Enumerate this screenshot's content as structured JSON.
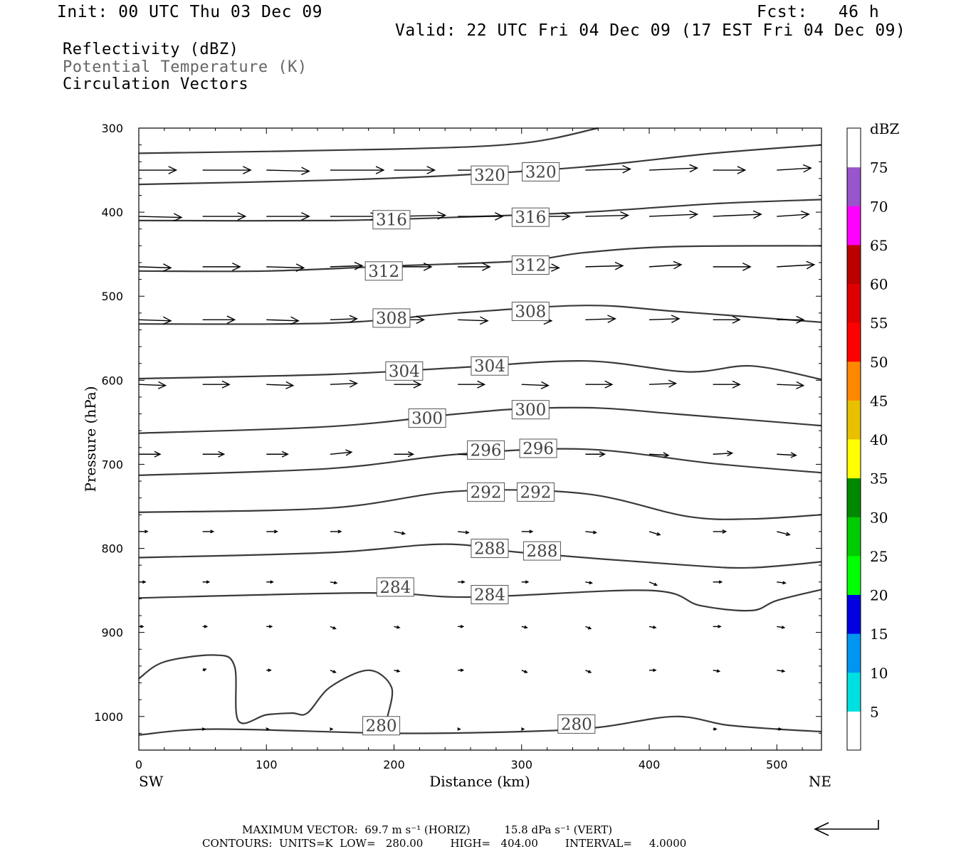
{
  "header": {
    "init": "Init: 00 UTC Thu 03 Dec 09",
    "fcst": "Fcst:   46 h",
    "valid": "Valid: 22 UTC Fri 04 Dec 09 (17 EST Fri 04 Dec 09)",
    "fields": [
      {
        "label": "Reflectivity (dBZ)",
        "color": "#000000"
      },
      {
        "label": "Potential Temperature (K)",
        "color": "#666666"
      },
      {
        "label": "Circulation Vectors",
        "color": "#000000"
      }
    ]
  },
  "footer": {
    "max_vector": "MAXIMUM VECTOR:  69.7 m s⁻¹ (HORIZ)          15.8 dPa s⁻¹ (VERT)",
    "contours": "CONTOURS:  UNITS=K  LOW=   280.00        HIGH=   404.00        INTERVAL=     4.0000"
  },
  "chart_data": {
    "type": "cross-section contour",
    "xlabel": "Distance (km)",
    "ylabel": "Pressure (hPa)",
    "xlim": [
      0,
      535
    ],
    "ylim": [
      300,
      1040
    ],
    "y_inverted": true,
    "xticks": [
      0,
      100,
      200,
      300,
      400,
      500
    ],
    "yticks": [
      300,
      400,
      500,
      600,
      700,
      800,
      900,
      1000
    ],
    "x_end_labels": {
      "left": "SW",
      "right": "NE"
    },
    "colorbar": {
      "title": "dBZ",
      "ticks": [
        5,
        10,
        15,
        20,
        25,
        30,
        35,
        40,
        45,
        50,
        55,
        60,
        65,
        70,
        75
      ],
      "colors": [
        "#ffffff",
        "#00e0e0",
        "#0096f0",
        "#0000e0",
        "#00ff00",
        "#00cc00",
        "#008800",
        "#ffff00",
        "#e8c000",
        "#ff8800",
        "#ff0000",
        "#dd0000",
        "#bb0000",
        "#ff00ff",
        "#9955cc",
        "#ffffff"
      ]
    },
    "isentropes": [
      {
        "theta": 320,
        "points": [
          [
            0,
            330
          ],
          [
            200,
            325
          ],
          [
            300,
            318
          ],
          [
            360,
            300
          ]
        ],
        "labels": [
          [
            275,
            356
          ],
          [
            315,
            352
          ]
        ]
      },
      {
        "theta": 320,
        "points": [
          [
            0,
            367
          ],
          [
            150,
            362
          ],
          [
            250,
            356
          ],
          [
            350,
            346
          ],
          [
            450,
            330
          ],
          [
            535,
            320
          ]
        ],
        "labels": []
      },
      {
        "theta": 316,
        "points": [
          [
            0,
            410
          ],
          [
            150,
            410
          ],
          [
            250,
            406
          ],
          [
            350,
            400
          ],
          [
            450,
            390
          ],
          [
            535,
            385
          ]
        ],
        "labels": [
          [
            198,
            409
          ],
          [
            307,
            406
          ]
        ]
      },
      {
        "theta": 312,
        "points": [
          [
            0,
            470
          ],
          [
            100,
            470
          ],
          [
            200,
            464
          ],
          [
            300,
            458
          ],
          [
            350,
            448
          ],
          [
            420,
            441
          ],
          [
            535,
            440
          ]
        ],
        "labels": [
          [
            192,
            470
          ],
          [
            307,
            463
          ]
        ]
      },
      {
        "theta": 308,
        "points": [
          [
            0,
            533
          ],
          [
            150,
            532
          ],
          [
            250,
            520
          ],
          [
            350,
            511
          ],
          [
            420,
            518
          ],
          [
            535,
            531
          ]
        ],
        "labels": [
          [
            198,
            526
          ],
          [
            307,
            518
          ]
        ]
      },
      {
        "theta": 304,
        "points": [
          [
            0,
            598
          ],
          [
            150,
            593
          ],
          [
            250,
            585
          ],
          [
            350,
            577
          ],
          [
            430,
            590
          ],
          [
            480,
            583
          ],
          [
            535,
            599
          ]
        ],
        "labels": [
          [
            208,
            589
          ],
          [
            275,
            583
          ]
        ]
      },
      {
        "theta": 300,
        "points": [
          [
            0,
            663
          ],
          [
            150,
            655
          ],
          [
            250,
            640
          ],
          [
            300,
            634
          ],
          [
            360,
            633
          ],
          [
            420,
            640
          ],
          [
            535,
            654
          ]
        ],
        "labels": [
          [
            226,
            645
          ],
          [
            307,
            635
          ]
        ]
      },
      {
        "theta": 296,
        "points": [
          [
            0,
            713
          ],
          [
            150,
            705
          ],
          [
            250,
            688
          ],
          [
            350,
            682
          ],
          [
            450,
            699
          ],
          [
            535,
            710
          ]
        ],
        "labels": [
          [
            272,
            683
          ],
          [
            313,
            681
          ]
        ]
      },
      {
        "theta": 292,
        "points": [
          [
            0,
            757
          ],
          [
            150,
            752
          ],
          [
            250,
            732
          ],
          [
            350,
            735
          ],
          [
            430,
            762
          ],
          [
            480,
            765
          ],
          [
            535,
            760
          ]
        ],
        "labels": [
          [
            272,
            733
          ],
          [
            311,
            733
          ]
        ]
      },
      {
        "theta": 288,
        "points": [
          [
            0,
            811
          ],
          [
            150,
            805
          ],
          [
            240,
            795
          ],
          [
            300,
            805
          ],
          [
            430,
            820
          ],
          [
            480,
            823
          ],
          [
            535,
            816
          ]
        ],
        "labels": [
          [
            275,
            800
          ],
          [
            316,
            803
          ]
        ]
      },
      {
        "theta": 284,
        "points": [
          [
            0,
            859
          ],
          [
            180,
            853
          ],
          [
            260,
            858
          ],
          [
            400,
            850
          ],
          [
            440,
            868
          ],
          [
            480,
            874
          ],
          [
            500,
            862
          ],
          [
            535,
            849
          ]
        ],
        "labels": [
          [
            201,
            846
          ],
          [
            275,
            855
          ]
        ]
      },
      {
        "theta": 280,
        "points": [
          [
            0,
            1022
          ],
          [
            60,
            1015
          ],
          [
            200,
            1020
          ],
          [
            300,
            1018
          ],
          [
            360,
            1013
          ],
          [
            420,
            1000
          ],
          [
            460,
            1010
          ],
          [
            500,
            1015
          ],
          [
            535,
            1018
          ]
        ],
        "labels": [
          [
            190,
            1011
          ],
          [
            343,
            1009
          ]
        ]
      },
      {
        "theta": 280,
        "points": [
          [
            0,
            955
          ],
          [
            20,
            935
          ],
          [
            60,
            927
          ],
          [
            75,
            940
          ],
          [
            78,
            1005
          ],
          [
            100,
            998
          ],
          [
            120,
            996
          ],
          [
            132,
            996
          ],
          [
            150,
            965
          ],
          [
            180,
            945
          ],
          [
            198,
            965
          ],
          [
            195,
            1000
          ]
        ],
        "labels": []
      }
    ],
    "circulation_vectors": [
      {
        "p": 350,
        "x": [
          0,
          50,
          100,
          150,
          200,
          250,
          300,
          350,
          400,
          450,
          500
        ],
        "u": [
          35,
          45,
          40,
          50,
          38,
          30,
          32,
          42,
          45,
          30,
          32
        ],
        "w": [
          0,
          0,
          1,
          0,
          0,
          0,
          0,
          -1,
          -2,
          0,
          -2
        ]
      },
      {
        "p": 405,
        "x": [
          0,
          50,
          100,
          150,
          200,
          250,
          300,
          350,
          400,
          450,
          500
        ],
        "u": [
          40,
          40,
          40,
          45,
          48,
          42,
          45,
          40,
          45,
          45,
          30
        ],
        "w": [
          1,
          0,
          0,
          0,
          -1,
          0,
          0,
          -1,
          -2,
          -2,
          -2
        ]
      },
      {
        "p": 465,
        "x": [
          0,
          50,
          100,
          150,
          200,
          250,
          300,
          350,
          400,
          450,
          500
        ],
        "u": [
          30,
          35,
          35,
          30,
          35,
          30,
          35,
          35,
          30,
          35,
          35
        ],
        "w": [
          1,
          0,
          1,
          -1,
          0,
          0,
          1,
          -1,
          -2,
          0,
          -2
        ]
      },
      {
        "p": 528,
        "x": [
          0,
          50,
          100,
          150,
          200,
          250,
          300,
          350,
          400,
          450,
          500
        ],
        "u": [
          30,
          30,
          30,
          25,
          28,
          28,
          28,
          28,
          28,
          25,
          25
        ],
        "w": [
          1,
          0,
          1,
          -1,
          0,
          1,
          1,
          -1,
          -1,
          0,
          0
        ]
      },
      {
        "p": 605,
        "x": [
          0,
          50,
          100,
          150,
          200,
          250,
          300,
          350,
          400,
          450,
          500
        ],
        "u": [
          25,
          25,
          25,
          25,
          25,
          25,
          25,
          25,
          25,
          25,
          25
        ],
        "w": [
          1,
          0,
          1,
          -1,
          0,
          0,
          1,
          0,
          -1,
          0,
          1
        ]
      },
      {
        "p": 688,
        "x": [
          0,
          50,
          100,
          150,
          200,
          250,
          300,
          350,
          400,
          450,
          500
        ],
        "u": [
          20,
          20,
          20,
          20,
          18,
          18,
          18,
          18,
          18,
          18,
          18
        ],
        "w": [
          0,
          0,
          0,
          -2,
          0,
          1,
          0,
          0,
          1,
          -1,
          1
        ]
      },
      {
        "p": 780,
        "x": [
          0,
          50,
          100,
          150,
          200,
          250,
          300,
          350,
          400,
          450,
          500
        ],
        "u": [
          8,
          10,
          10,
          10,
          10,
          10,
          10,
          10,
          10,
          12,
          12
        ],
        "w": [
          0,
          0,
          0,
          0,
          2,
          1,
          0,
          1,
          3,
          0,
          3
        ]
      },
      {
        "p": 840,
        "x": [
          0,
          50,
          100,
          150,
          200,
          250,
          300,
          350,
          400,
          450,
          500
        ],
        "u": [
          6,
          6,
          6,
          6,
          6,
          6,
          6,
          6,
          7,
          8,
          8
        ],
        "w": [
          0,
          0,
          0,
          1,
          0,
          0,
          0,
          1,
          3,
          0,
          1
        ]
      },
      {
        "p": 893,
        "x": [
          0,
          50,
          100,
          150,
          200,
          250,
          300,
          350,
          400,
          450,
          500
        ],
        "u": [
          4,
          4,
          5,
          5,
          5,
          5,
          5,
          5,
          6,
          7,
          7
        ],
        "w": [
          0,
          0,
          0,
          2,
          1,
          0,
          1,
          2,
          1,
          0,
          1
        ]
      },
      {
        "p": 945,
        "x": [
          50,
          100,
          150,
          200,
          250,
          300,
          350,
          400,
          450,
          500
        ],
        "u": [
          3,
          4,
          5,
          5,
          5,
          5,
          5,
          6,
          6,
          7
        ],
        "w": [
          -1,
          0,
          2,
          1,
          0,
          2,
          2,
          0,
          1,
          1
        ]
      },
      {
        "p": 1015,
        "x": [
          50,
          100,
          150,
          250,
          300,
          450,
          500
        ],
        "u": [
          2,
          2,
          2,
          2,
          2,
          3,
          4
        ],
        "w": [
          0,
          0,
          0,
          0,
          0,
          0,
          0
        ]
      }
    ],
    "reference_vector": "horizontal and vertical scale arrow"
  }
}
